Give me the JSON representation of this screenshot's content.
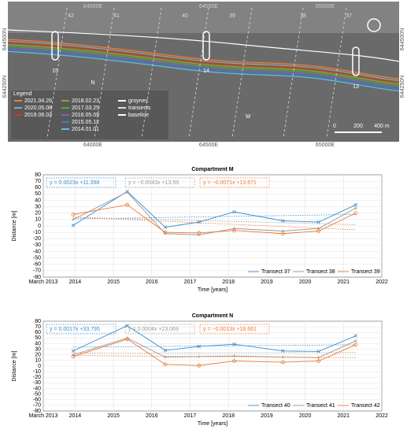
{
  "map": {
    "eastings": [
      "64000E",
      "64500E",
      "65000E"
    ],
    "northings": [
      "644500N",
      "644250N"
    ],
    "transects": [
      "42",
      "41",
      "40",
      "39",
      "38",
      "37"
    ],
    "groynes": [
      "15",
      "14",
      "13"
    ],
    "compartments": [
      "N",
      "M"
    ],
    "legend_title": "Legend",
    "legend": [
      {
        "name": "2021.04.26",
        "color": "#f08030"
      },
      {
        "name": "2020.05.08",
        "color": "#a0a0a0"
      },
      {
        "name": "2019.06.03",
        "color": "#c84010"
      },
      {
        "name": "2018.02.23",
        "color": "#a0a020"
      },
      {
        "name": "2017.03.25",
        "color": "#40b040"
      },
      {
        "name": "2016.05.09",
        "color": "#8060c0"
      },
      {
        "name": "2015.05.12",
        "color": "#3080d0"
      },
      {
        "name": "2014.01.01",
        "color": "#60c0e0"
      },
      {
        "name": "groynes",
        "color": "#ffffff"
      },
      {
        "name": "transects",
        "color": "#dddddd"
      },
      {
        "name": "baseline",
        "color": "#ffffff"
      }
    ],
    "scale": [
      "0",
      "200",
      "400 m"
    ]
  },
  "chart_data": [
    {
      "type": "line",
      "title": "Compartment M",
      "xlabel": "Time [years]",
      "ylabel": "Distance [m]",
      "x": [
        2013.95,
        2015.36,
        2016.35,
        2017.23,
        2018.15,
        2019.42,
        2020.35,
        2021.32
      ],
      "xlim": [
        2013.17,
        2022
      ],
      "xticks": [
        {
          "value": 2013.17,
          "label": "March 2013"
        },
        2014,
        2015,
        2016,
        2017,
        2018,
        2019,
        2020,
        2021,
        2022
      ],
      "ylim": [
        -80,
        80
      ],
      "yticks": [
        -80,
        -70,
        -60,
        -50,
        -40,
        -30,
        -20,
        -10,
        0,
        10,
        20,
        30,
        40,
        50,
        60,
        70,
        80
      ],
      "grid": true,
      "legend": "lower right",
      "series": [
        {
          "name": "Transect 37",
          "color": "#3a8fd0",
          "values": [
            1,
            54,
            -2,
            6,
            22,
            8,
            6,
            33
          ],
          "trend": [
            11,
            18
          ],
          "equation": "y = 0.0023x +11.358"
        },
        {
          "name": "Transect 38",
          "color": "#999999",
          "values": [
            10,
            53,
            -12,
            -14,
            -4,
            -8,
            -4,
            28
          ],
          "trend": [
            13.6,
            2
          ],
          "equation": "y = −0.0043x +13.59"
        },
        {
          "name": "Transect 39",
          "color": "#f07830",
          "values": [
            18,
            33,
            -10,
            -11,
            -7,
            -12,
            -8,
            20
          ],
          "trend": [
            13.7,
            -6
          ],
          "equation": "y = −0.0071x +13.671"
        }
      ]
    },
    {
      "type": "line",
      "title": "Compartment N",
      "xlabel": "Time [years]",
      "ylabel": "Distance [m]",
      "x": [
        2013.95,
        2015.36,
        2016.35,
        2017.23,
        2018.15,
        2019.42,
        2020.35,
        2021.32
      ],
      "xlim": [
        2013.17,
        2022
      ],
      "xticks": [
        {
          "value": 2013.17,
          "label": "March 2013"
        },
        2014,
        2015,
        2016,
        2017,
        2018,
        2019,
        2020,
        2021,
        2022
      ],
      "ylim": [
        -80,
        80
      ],
      "yticks": [
        -80,
        -70,
        -60,
        -50,
        -40,
        -30,
        -20,
        -10,
        0,
        10,
        20,
        30,
        40,
        50,
        60,
        70,
        80
      ],
      "grid": true,
      "legend": "lower right",
      "series": [
        {
          "name": "Transect 40",
          "color": "#3a8fd0",
          "values": [
            27,
            72,
            28,
            35,
            39,
            27,
            26,
            54
          ],
          "trend": [
            33.8,
            38
          ],
          "equation": "y = 0.0017x +33.795"
        },
        {
          "name": "Transect 41",
          "color": "#999999",
          "values": [
            20,
            50,
            16,
            17,
            18,
            16,
            15,
            45
          ],
          "trend": [
            23,
            24
          ],
          "equation": "y = 0.0004x +23.069"
        },
        {
          "name": "Transect 42",
          "color": "#f07830",
          "values": [
            17,
            48,
            3,
            1,
            9,
            7,
            9,
            38
          ],
          "trend": [
            18.7,
            15
          ],
          "equation": "y = −0.0013x +18.661"
        }
      ]
    }
  ]
}
